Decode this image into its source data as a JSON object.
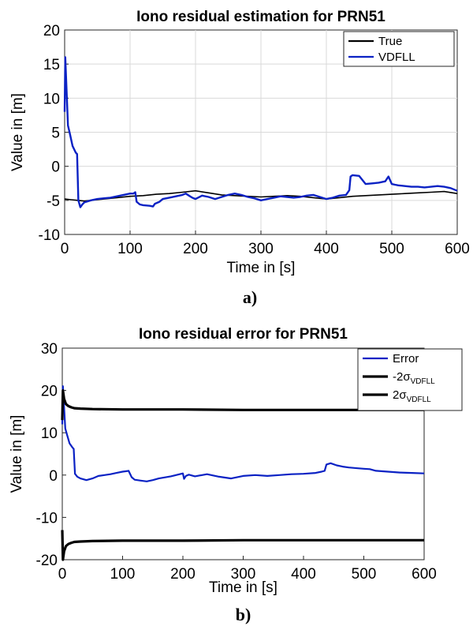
{
  "chart_data": [
    {
      "type": "line",
      "title": "Iono residual estimation for PRN51",
      "xlabel": "Time in [s]",
      "ylabel": "Value in [m]",
      "xlim": [
        0,
        600
      ],
      "ylim": [
        -10,
        20
      ],
      "xticks": [
        "0",
        "100",
        "200",
        "300",
        "400",
        "500",
        "600"
      ],
      "yticks": [
        "-10",
        "-5",
        "0",
        "5",
        "10",
        "15",
        "20"
      ],
      "grid": true,
      "legend_position": "top-right",
      "caption": "a)",
      "series": [
        {
          "name": "True",
          "color": "#000000",
          "x": [
            0,
            10,
            20,
            30,
            40,
            60,
            80,
            100,
            120,
            140,
            160,
            180,
            200,
            220,
            240,
            260,
            280,
            300,
            320,
            340,
            360,
            380,
            400,
            420,
            440,
            460,
            480,
            500,
            520,
            540,
            560,
            580,
            600
          ],
          "y": [
            -4.8,
            -4.9,
            -5.0,
            -5.1,
            -5.0,
            -4.8,
            -4.6,
            -4.4,
            -4.3,
            -4.1,
            -4.0,
            -3.8,
            -3.6,
            -3.9,
            -4.2,
            -4.3,
            -4.4,
            -4.5,
            -4.4,
            -4.3,
            -4.4,
            -4.6,
            -4.8,
            -4.6,
            -4.4,
            -4.3,
            -4.2,
            -4.1,
            -4.0,
            -3.9,
            -3.8,
            -3.7,
            -4.0
          ]
        },
        {
          "name": "VDFLL",
          "color": "#0b22c4",
          "x": [
            0,
            1,
            3,
            5,
            8,
            12,
            17,
            19,
            21,
            24,
            27,
            30,
            40,
            50,
            60,
            70,
            80,
            90,
            100,
            105,
            108,
            110,
            115,
            120,
            130,
            135,
            138,
            145,
            150,
            160,
            170,
            180,
            185,
            190,
            195,
            200,
            210,
            220,
            230,
            240,
            250,
            260,
            270,
            280,
            290,
            300,
            310,
            320,
            330,
            340,
            350,
            360,
            370,
            380,
            390,
            400,
            410,
            420,
            430,
            435,
            437,
            440,
            450,
            460,
            470,
            480,
            490,
            495,
            500,
            505,
            510,
            520,
            530,
            540,
            550,
            560,
            570,
            580,
            590,
            600
          ],
          "y": [
            8,
            16,
            11,
            6,
            4.8,
            3,
            2,
            1.8,
            -5.0,
            -6.0,
            -5.6,
            -5.3,
            -5.0,
            -4.8,
            -4.7,
            -4.6,
            -4.4,
            -4.2,
            -4.0,
            -4.0,
            -3.8,
            -5.2,
            -5.6,
            -5.7,
            -5.8,
            -5.9,
            -5.5,
            -5.2,
            -4.8,
            -4.6,
            -4.4,
            -4.2,
            -4.0,
            -4.3,
            -4.6,
            -4.8,
            -4.3,
            -4.5,
            -4.8,
            -4.5,
            -4.2,
            -4.0,
            -4.2,
            -4.5,
            -4.7,
            -5.0,
            -4.8,
            -4.6,
            -4.4,
            -4.5,
            -4.6,
            -4.5,
            -4.3,
            -4.2,
            -4.5,
            -4.8,
            -4.6,
            -4.3,
            -4.2,
            -3.5,
            -1.5,
            -1.3,
            -1.4,
            -2.6,
            -2.5,
            -2.4,
            -2.2,
            -1.5,
            -2.6,
            -2.7,
            -2.8,
            -2.9,
            -3.0,
            -3.0,
            -3.1,
            -3.0,
            -2.9,
            -3.0,
            -3.2,
            -3.6
          ]
        }
      ]
    },
    {
      "type": "line",
      "title": "Iono residual error for PRN51",
      "xlabel": "Time in [s]",
      "ylabel": "Value in [m]",
      "xlim": [
        0,
        600
      ],
      "ylim": [
        -20,
        30
      ],
      "xticks": [
        "0",
        "100",
        "200",
        "300",
        "400",
        "500",
        "600"
      ],
      "yticks": [
        "-20",
        "-10",
        "0",
        "10",
        "20",
        "30"
      ],
      "grid": false,
      "legend_position": "top-right",
      "caption": "b)",
      "series": [
        {
          "name": "Error",
          "legend_sub": "",
          "color": "#0b22c4",
          "x": [
            0,
            1,
            3,
            5,
            8,
            12,
            17,
            19,
            21,
            25,
            30,
            40,
            50,
            60,
            70,
            80,
            90,
            100,
            105,
            110,
            115,
            120,
            130,
            140,
            150,
            160,
            180,
            200,
            202,
            205,
            210,
            220,
            240,
            260,
            280,
            300,
            320,
            340,
            360,
            380,
            400,
            420,
            430,
            435,
            438,
            445,
            455,
            465,
            475,
            490,
            500,
            510,
            520,
            540,
            560,
            580,
            600
          ],
          "y": [
            12,
            21,
            16,
            11,
            9.5,
            7.5,
            6.5,
            6.2,
            0.3,
            -0.4,
            -0.8,
            -1.2,
            -0.8,
            -0.2,
            0.0,
            0.2,
            0.5,
            0.8,
            0.9,
            1.0,
            -0.5,
            -1.1,
            -1.3,
            -1.5,
            -1.2,
            -0.8,
            -0.3,
            0.4,
            -0.9,
            -0.2,
            0.1,
            -0.3,
            0.2,
            -0.4,
            -0.8,
            -0.2,
            0.0,
            -0.2,
            0.0,
            0.2,
            0.3,
            0.5,
            0.8,
            1.0,
            2.5,
            2.8,
            2.3,
            2.0,
            1.8,
            1.6,
            1.5,
            1.4,
            1.0,
            0.8,
            0.6,
            0.5,
            0.4
          ]
        },
        {
          "name": "-2σ",
          "legend_sub": "VDFLL",
          "color": "#000000",
          "x": [
            0,
            1,
            3,
            6,
            10,
            15,
            20,
            30,
            50,
            100,
            200,
            300,
            400,
            500,
            600
          ],
          "y": [
            -13,
            -20,
            -18,
            -16.8,
            -16.3,
            -16.0,
            -15.8,
            -15.7,
            -15.6,
            -15.5,
            -15.5,
            -15.4,
            -15.4,
            -15.4,
            -15.4
          ]
        },
        {
          "name": "2σ",
          "legend_sub": "VDFLL",
          "color": "#000000",
          "x": [
            0,
            1,
            3,
            6,
            10,
            15,
            20,
            30,
            50,
            100,
            200,
            300,
            400,
            500,
            600
          ],
          "y": [
            13,
            20,
            18,
            16.8,
            16.3,
            16.0,
            15.8,
            15.7,
            15.6,
            15.5,
            15.5,
            15.4,
            15.4,
            15.4,
            15.4
          ]
        }
      ]
    }
  ]
}
